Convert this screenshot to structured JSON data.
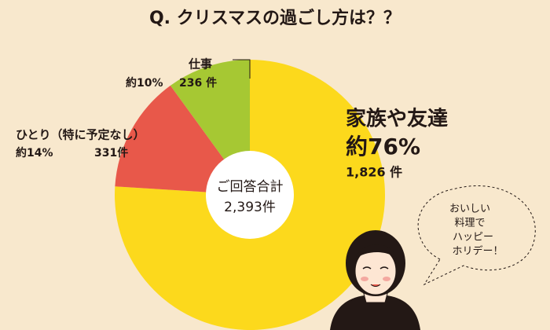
{
  "chart_data": {
    "type": "donut",
    "title": "Q. クリスマスの過ごし方は？？",
    "categories": [
      "家族や友達",
      "ひとり（特に予定なし）",
      "仕事"
    ],
    "values": [
      76,
      14,
      10
    ],
    "value_labels": [
      "約76%",
      "約14%",
      "約10%"
    ],
    "counts": [
      1826,
      331,
      236
    ],
    "count_labels": [
      "1,826 件",
      "331件",
      "236 件"
    ],
    "colors": [
      "#fcd91c",
      "#e8584a",
      "#a6c833"
    ],
    "total_title": "ご回答合計",
    "total": 2393,
    "total_label": "2,393件",
    "note": [
      "おいしい",
      "料理で",
      "ハッピー",
      "ホリデー！"
    ]
  }
}
